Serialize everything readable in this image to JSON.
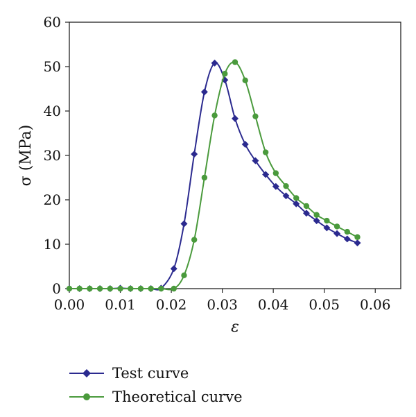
{
  "chart_data": {
    "type": "line",
    "title": "",
    "xlabel": "ε",
    "ylabel": "σ (MPa)",
    "xlim": [
      0.0,
      0.065
    ],
    "ylim": [
      0,
      60
    ],
    "x_ticks": [
      "0.00",
      "0.01",
      "0.02",
      "0.03",
      "0.04",
      "0.05",
      "0.06"
    ],
    "x_tick_values": [
      0.0,
      0.01,
      0.02,
      0.03,
      0.04,
      0.05,
      0.06
    ],
    "y_ticks": [
      "0",
      "10",
      "20",
      "30",
      "40",
      "50",
      "60"
    ],
    "y_tick_values": [
      0,
      10,
      20,
      30,
      40,
      50,
      60
    ],
    "grid": false,
    "legend_position": "bottom-left",
    "series": [
      {
        "name": "Test curve",
        "marker": "diamond",
        "color": "#2b2a8f",
        "x": [
          0.0,
          0.002,
          0.004,
          0.006,
          0.008,
          0.01,
          0.012,
          0.014,
          0.016,
          0.018,
          0.0205,
          0.0225,
          0.0245,
          0.0265,
          0.0285,
          0.0305,
          0.0325,
          0.0345,
          0.0365,
          0.0385,
          0.0405,
          0.0425,
          0.0445,
          0.0465,
          0.0485,
          0.0505,
          0.0525,
          0.0545,
          0.0565
        ],
        "y": [
          0,
          0,
          0,
          0,
          0,
          0.1,
          0,
          0,
          0,
          0.1,
          4.5,
          14.6,
          30.3,
          44.3,
          50.8,
          47.0,
          38.3,
          32.5,
          28.8,
          25.7,
          23.0,
          20.9,
          19.1,
          17.0,
          15.3,
          13.7,
          12.4,
          11.2,
          10.3
        ]
      },
      {
        "name": "Theoretical curve",
        "marker": "circle",
        "color": "#4a9a3c",
        "x": [
          0.0,
          0.002,
          0.004,
          0.006,
          0.008,
          0.01,
          0.012,
          0.014,
          0.016,
          0.018,
          0.0205,
          0.0225,
          0.0245,
          0.0265,
          0.0285,
          0.0305,
          0.0325,
          0.0345,
          0.0365,
          0.0385,
          0.0405,
          0.0425,
          0.0445,
          0.0465,
          0.0485,
          0.0505,
          0.0525,
          0.0545,
          0.0565
        ],
        "y": [
          0,
          0,
          0,
          0,
          0,
          0,
          0,
          0,
          0,
          0,
          0,
          3.0,
          11.0,
          25.0,
          39.0,
          48.4,
          51.0,
          46.9,
          38.8,
          30.7,
          26.0,
          23.1,
          20.4,
          18.6,
          16.6,
          15.3,
          14.0,
          12.8,
          11.6
        ]
      }
    ]
  }
}
